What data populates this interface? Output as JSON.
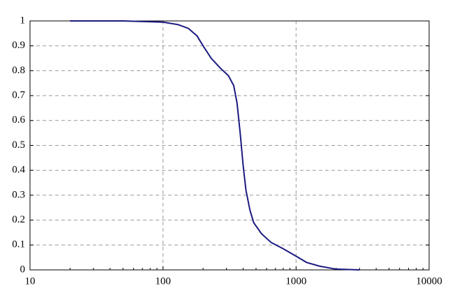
{
  "chart_data": {
    "type": "line",
    "x": [
      20,
      50,
      100,
      130,
      155,
      180,
      200,
      230,
      270,
      310,
      340,
      360,
      380,
      400,
      420,
      450,
      480,
      550,
      650,
      800,
      1000,
      1200,
      1500,
      2000,
      3000
    ],
    "series": [
      {
        "color": "#1a1a80",
        "values": [
          1,
          1,
          0.995,
          0.985,
          0.97,
          0.94,
          0.9,
          0.85,
          0.81,
          0.78,
          0.74,
          0.67,
          0.55,
          0.42,
          0.32,
          0.24,
          0.19,
          0.145,
          0.11,
          0.085,
          0.055,
          0.03,
          0.015,
          0.003,
          0
        ]
      }
    ],
    "xscale": "log",
    "xlim": [
      10,
      10000
    ],
    "xticks": [
      10,
      100,
      1000,
      10000
    ],
    "ylim": [
      0,
      1
    ],
    "yticks": [
      0,
      0.1,
      0.2,
      0.3,
      0.4,
      0.5,
      0.6,
      0.7,
      0.8,
      0.9,
      1
    ],
    "grid": true
  }
}
